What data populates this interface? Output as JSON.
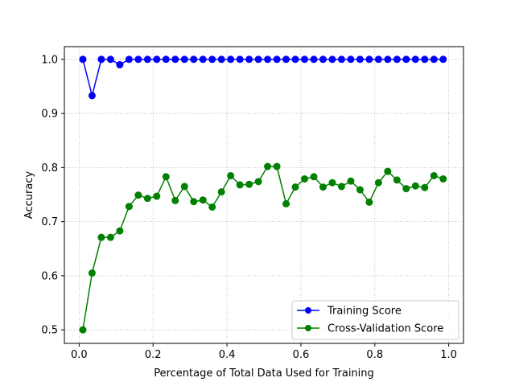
{
  "chart_data": {
    "type": "line",
    "title": "",
    "xlabel": "Percentage of Total Data Used for Training",
    "ylabel": "Accuracy",
    "xlim": [
      -0.04,
      1.04
    ],
    "ylim": [
      0.475,
      1.0235
    ],
    "xticks": [
      0.0,
      0.2,
      0.4,
      0.6,
      0.8,
      1.0
    ],
    "xtick_labels": [
      "0.0",
      "0.2",
      "0.4",
      "0.6",
      "0.8",
      "1.0"
    ],
    "yticks": [
      0.5,
      0.6,
      0.7,
      0.8,
      0.9,
      1.0
    ],
    "ytick_labels": [
      "0.5",
      "0.6",
      "0.7",
      "0.8",
      "0.9",
      "1.0"
    ],
    "grid": true,
    "legend": "lower-right",
    "x": [
      0.01,
      0.035,
      0.06,
      0.085,
      0.11,
      0.135,
      0.16,
      0.185,
      0.21,
      0.235,
      0.26,
      0.285,
      0.31,
      0.335,
      0.36,
      0.385,
      0.41,
      0.435,
      0.46,
      0.485,
      0.51,
      0.535,
      0.56,
      0.585,
      0.61,
      0.635,
      0.66,
      0.685,
      0.71,
      0.735,
      0.76,
      0.785,
      0.81,
      0.835,
      0.86,
      0.885,
      0.91,
      0.935,
      0.96,
      0.985
    ],
    "series": [
      {
        "name": "Training Score",
        "color": "#0000ff",
        "values": [
          1.0,
          0.933,
          1.0,
          1.0,
          0.99,
          1.0,
          1.0,
          1.0,
          1.0,
          1.0,
          1.0,
          1.0,
          1.0,
          1.0,
          1.0,
          1.0,
          1.0,
          1.0,
          1.0,
          1.0,
          1.0,
          1.0,
          1.0,
          1.0,
          1.0,
          1.0,
          1.0,
          1.0,
          1.0,
          1.0,
          1.0,
          1.0,
          1.0,
          1.0,
          1.0,
          1.0,
          1.0,
          1.0,
          1.0,
          1.0
        ]
      },
      {
        "name": "Cross-Validation Score",
        "color": "#008000",
        "values": [
          0.5,
          0.605,
          0.671,
          0.671,
          0.683,
          0.728,
          0.749,
          0.743,
          0.747,
          0.783,
          0.739,
          0.765,
          0.737,
          0.74,
          0.727,
          0.755,
          0.785,
          0.768,
          0.769,
          0.774,
          0.802,
          0.802,
          0.733,
          0.764,
          0.779,
          0.783,
          0.764,
          0.772,
          0.765,
          0.775,
          0.759,
          0.736,
          0.772,
          0.793,
          0.777,
          0.761,
          0.766,
          0.763,
          0.785,
          0.779
        ]
      }
    ]
  }
}
